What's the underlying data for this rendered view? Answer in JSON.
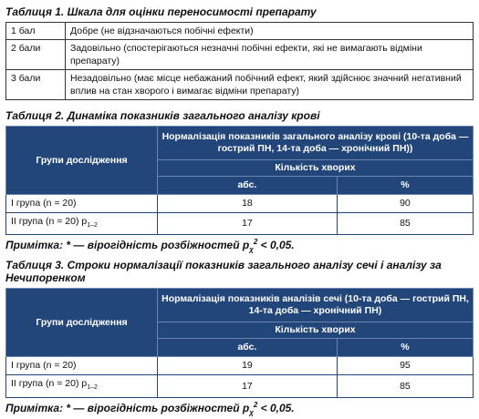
{
  "table1": {
    "title": "Таблиця 1. Шкала для оцінки переносимості препарату",
    "rows": [
      [
        "1 бал",
        "Добре (не відзначаються побічні ефекти)"
      ],
      [
        "2 бали",
        "Задовільно (спостерігаються незначні побічні ефекти, які не вимагають відміни препарату)"
      ],
      [
        "3 бали",
        "Незадовільно (має місце небажаний побічний ефект, який здійснює значний негативний вплив на стан хворого і вимагає відміни препарату)"
      ]
    ]
  },
  "table2": {
    "title": "Таблиця 2. Динаміка показників загального аналізу крові",
    "header": {
      "groups": "Групи дослідження",
      "main": "Нормалізація показників загального аналізу крові (10-та доба — гострий ПН, 14-та доба — хронічний ПН))",
      "count": "Кількість хворих",
      "abs": "абс.",
      "pct": "%"
    },
    "rows": [
      {
        "group": "І група (n = 20)",
        "abs": 18,
        "pct": 90
      },
      {
        "group": "ІІ група (n = 20) p",
        "sub": "1–2",
        "abs": 17,
        "pct": 85
      }
    ],
    "note": [
      "Примітка: * — вірогідність розбіжностей p",
      "χ",
      "2",
      " < 0,05."
    ]
  },
  "table3": {
    "title": "Таблиця 3. Строки нормалізації показників загального аналізу сечі і аналізу за Нечипоренком",
    "header": {
      "groups": "Групи дослідження",
      "main": "Нормалізація показників аналізів сечі (10-та доба — гострий ПН, 14-та доба — хронічний ПН)",
      "count": "Кількість хворих",
      "abs": "абс.",
      "pct": "%"
    },
    "rows": [
      {
        "group": "І група (n = 20)",
        "abs": 19,
        "pct": 95
      },
      {
        "group": "ІІ група (n = 20) p",
        "sub": "1–2",
        "abs": 17,
        "pct": 85
      }
    ],
    "note": [
      "Примітка: * — вірогідність розбіжностей p",
      "χ",
      "2",
      " < 0,05."
    ]
  }
}
